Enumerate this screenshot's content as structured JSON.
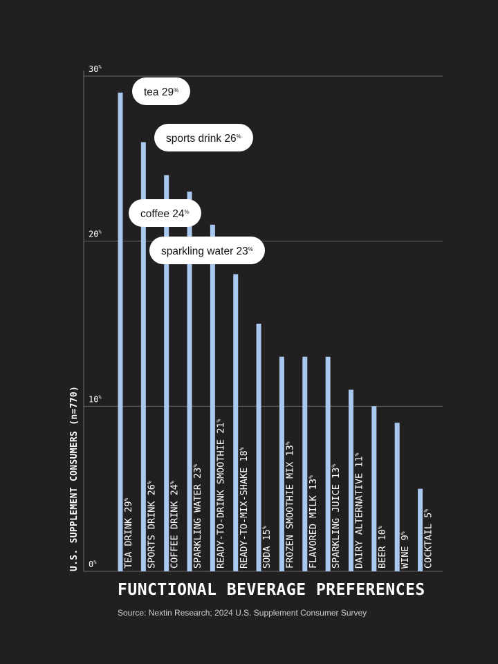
{
  "chart_data": {
    "type": "bar",
    "title": "FUNCTIONAL BEVERAGE PREFERENCES",
    "source": "Source: Nextin Research; 2024 U.S. Supplement Consumer Survey",
    "ylabel": "U.S. SUPPLEMENT CONSUMERS (n=770)",
    "ylim": [
      0,
      30
    ],
    "yticks": [
      0,
      10,
      20,
      30
    ],
    "unit": "%",
    "grid": true,
    "categories": [
      "TEA DRINK",
      "SPORTS DRINK",
      "COFFEE DRINK",
      "SPARKLING WATER",
      "READY-TO-DRINK SMOOTHIE",
      "READY-TO-MIX-SHAKE",
      "SODA",
      "FROZEN SMOOTHIE MIX",
      "FLAVORED MILK",
      "SPARKLING JUICE",
      "DAIRY ALTERNATIVE",
      "BEER",
      "WINE",
      "COCKTAIL"
    ],
    "values": [
      29,
      26,
      24,
      23,
      21,
      18,
      15,
      13,
      13,
      13,
      11,
      10,
      9,
      5
    ],
    "callouts": [
      {
        "label": "tea",
        "value": 29
      },
      {
        "label": "sports drink",
        "value": 26
      },
      {
        "label": "coffee",
        "value": 24
      },
      {
        "label": "sparkling water",
        "value": 23
      }
    ],
    "colors": {
      "background": "#221f20",
      "bar": "#a9c8ef",
      "grid": "#6a6868",
      "text": "#ffffff",
      "callout_bg": "#ffffff",
      "callout_text": "#111111"
    }
  }
}
